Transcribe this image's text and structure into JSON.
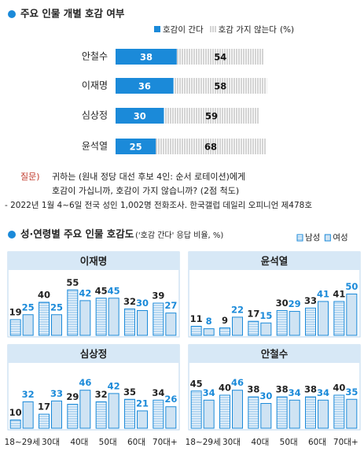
{
  "chart_data": [
    {
      "type": "hbar",
      "title": "주요 인물 개별 호감 여부",
      "unit": "(%)",
      "categories": [
        "안철수",
        "이재명",
        "심상정",
        "윤석열"
      ],
      "series": [
        {
          "name": "호감이 간다",
          "color": "#1b8ad9",
          "values": [
            38,
            36,
            30,
            25
          ]
        },
        {
          "name": "호감 가지 않는다",
          "color": "#a8a8a8",
          "values": [
            54,
            58,
            59,
            68
          ]
        }
      ],
      "xlim": [
        0,
        100
      ]
    },
    {
      "type": "bar-panels",
      "title": "성·연령별 주요 인물 호감도",
      "subtitle": "('호감 간다' 응답 비율, %)",
      "categories": [
        "18~29세",
        "30대",
        "40대",
        "50대",
        "60대",
        "70대+"
      ],
      "series": [
        {
          "name": "남성",
          "color": "#1b8ad9"
        },
        {
          "name": "여성",
          "color": "#1b8ad9"
        }
      ],
      "panels": [
        {
          "title": "이재명",
          "values": [
            [
              19,
              40,
              55,
              45,
              32,
              39
            ],
            [
              25,
              25,
              42,
              45,
              30,
              27
            ]
          ]
        },
        {
          "title": "윤석열",
          "values": [
            [
              11,
              9,
              17,
              30,
              33,
              41
            ],
            [
              8,
              22,
              15,
              29,
              41,
              50
            ]
          ]
        },
        {
          "title": "심상정",
          "values": [
            [
              10,
              17,
              29,
              32,
              35,
              34
            ],
            [
              32,
              33,
              46,
              42,
              21,
              26
            ]
          ]
        },
        {
          "title": "안철수",
          "values": [
            [
              45,
              40,
              38,
              38,
              38,
              40
            ],
            [
              34,
              46,
              30,
              34,
              34,
              35
            ]
          ]
        }
      ],
      "ylim": [
        0,
        80
      ]
    }
  ],
  "notes": {
    "label": "질문)",
    "lines": [
      "귀하는 (원내 정당 대선 후보 4인: 순서 로테이션)에게",
      "호감이 가십니까, 호감이 가지 않습니까? (2점 척도)"
    ],
    "source": "- 2022년 1월 4~6일 전국 성인 1,002명 전화조사. 한국갤럽 데일리 오피니언 제478호"
  }
}
